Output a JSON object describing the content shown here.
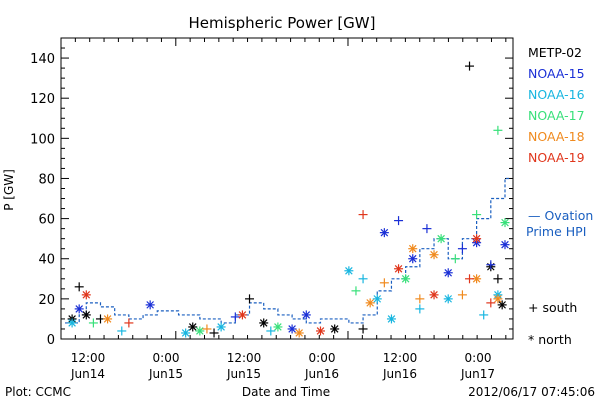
{
  "chart_data": {
    "type": "scatter",
    "title": "Hemispheric Power [GW]",
    "ylabel": "P [GW]",
    "xlabel": "Date and Time",
    "footer_left": "Plot: CCMC",
    "footer_right": "2012/06/17 07:45:06",
    "ylim": [
      0,
      150
    ],
    "yticks": [
      "0",
      "20",
      "40",
      "60",
      "80",
      "100",
      "120",
      "140"
    ],
    "xlim_hours": [
      -8,
      23.5
    ],
    "xticks": [
      {
        "time": "12:00",
        "day": "Jun14"
      },
      {
        "time": "0:00",
        "day": "Jun15"
      },
      {
        "time": "12:00",
        "day": "Jun15"
      },
      {
        "time": "0:00",
        "day": "Jun16"
      },
      {
        "time": "12:00",
        "day": "Jun16"
      },
      {
        "time": "0:00",
        "day": "Jun17"
      }
    ],
    "legend": {
      "placement": "right",
      "satellites": [
        {
          "name": "METP-02",
          "color": "#000000"
        },
        {
          "name": "NOAA-15",
          "color": "#1a2fd6"
        },
        {
          "name": "NOAA-16",
          "color": "#18b6e0"
        },
        {
          "name": "NOAA-17",
          "color": "#38e07a"
        },
        {
          "name": "NOAA-18",
          "color": "#f08a1e"
        },
        {
          "name": "NOAA-19",
          "color": "#e0361c"
        }
      ],
      "ovation_line1": "— Ovation",
      "ovation_line2": "Prime HPI",
      "ovation_color": "#1a5fc0",
      "south_label": "+ south",
      "north_label": "* north"
    },
    "series": [
      {
        "name": "Ovation Prime HPI",
        "kind": "step",
        "x": [
          -8,
          -7,
          -6.5,
          -5.5,
          -4.5,
          -3.5,
          -2.5,
          -1.5,
          0,
          1.5,
          3,
          4,
          5,
          6,
          7,
          8,
          9,
          10,
          11,
          12,
          13,
          14,
          15,
          16,
          17,
          18,
          19,
          20,
          21,
          22,
          23
        ],
        "y": [
          8,
          12,
          18,
          16,
          12,
          10,
          12,
          14,
          12,
          10,
          8,
          12,
          18,
          15,
          12,
          10,
          8,
          10,
          10,
          8,
          12,
          24,
          30,
          36,
          45,
          50,
          40,
          50,
          60,
          70,
          80
        ]
      },
      {
        "name": "METP-02",
        "points": [
          {
            "x": -7.5,
            "y": 10,
            "h": "N"
          },
          {
            "x": -7,
            "y": 26,
            "h": "S"
          },
          {
            "x": -6.5,
            "y": 12,
            "h": "N"
          },
          {
            "x": -5.5,
            "y": 10,
            "h": "S"
          },
          {
            "x": 1,
            "y": 6,
            "h": "N"
          },
          {
            "x": 2.5,
            "y": 3,
            "h": "S"
          },
          {
            "x": 5,
            "y": 20,
            "h": "S"
          },
          {
            "x": 6,
            "y": 8,
            "h": "N"
          },
          {
            "x": 11,
            "y": 5,
            "h": "N"
          },
          {
            "x": 13,
            "y": 5,
            "h": "S"
          },
          {
            "x": 20.5,
            "y": 136,
            "h": "S"
          },
          {
            "x": 22,
            "y": 36,
            "h": "N"
          },
          {
            "x": 22.5,
            "y": 30,
            "h": "S"
          },
          {
            "x": 22.8,
            "y": 17,
            "h": "N"
          }
        ]
      },
      {
        "name": "NOAA-15",
        "points": [
          {
            "x": -7,
            "y": 15,
            "h": "N"
          },
          {
            "x": -2,
            "y": 17,
            "h": "N"
          },
          {
            "x": 4,
            "y": 11,
            "h": "S"
          },
          {
            "x": 8,
            "y": 5,
            "h": "N"
          },
          {
            "x": 9,
            "y": 12,
            "h": "N"
          },
          {
            "x": 14.5,
            "y": 53,
            "h": "N"
          },
          {
            "x": 15.5,
            "y": 59,
            "h": "S"
          },
          {
            "x": 16.5,
            "y": 40,
            "h": "N"
          },
          {
            "x": 17.5,
            "y": 55,
            "h": "S"
          },
          {
            "x": 19,
            "y": 33,
            "h": "N"
          },
          {
            "x": 20,
            "y": 45,
            "h": "S"
          },
          {
            "x": 21,
            "y": 48,
            "h": "N"
          },
          {
            "x": 22,
            "y": 37,
            "h": "S"
          },
          {
            "x": 23,
            "y": 47,
            "h": "N"
          }
        ]
      },
      {
        "name": "NOAA-16",
        "points": [
          {
            "x": -7.5,
            "y": 8,
            "h": "N"
          },
          {
            "x": -4,
            "y": 4,
            "h": "S"
          },
          {
            "x": 0.5,
            "y": 3,
            "h": "N"
          },
          {
            "x": 3,
            "y": 6,
            "h": "N"
          },
          {
            "x": 6.5,
            "y": 4,
            "h": "S"
          },
          {
            "x": 12,
            "y": 34,
            "h": "N"
          },
          {
            "x": 13,
            "y": 30,
            "h": "S"
          },
          {
            "x": 14,
            "y": 20,
            "h": "N"
          },
          {
            "x": 15,
            "y": 10,
            "h": "N"
          },
          {
            "x": 17,
            "y": 15,
            "h": "S"
          },
          {
            "x": 19,
            "y": 20,
            "h": "N"
          },
          {
            "x": 21.5,
            "y": 12,
            "h": "S"
          },
          {
            "x": 22.5,
            "y": 22,
            "h": "N"
          }
        ]
      },
      {
        "name": "NOAA-17",
        "points": [
          {
            "x": -6,
            "y": 8,
            "h": "S"
          },
          {
            "x": 1.5,
            "y": 4,
            "h": "N"
          },
          {
            "x": 7,
            "y": 6,
            "h": "N"
          },
          {
            "x": 12.5,
            "y": 24,
            "h": "S"
          },
          {
            "x": 16,
            "y": 30,
            "h": "N"
          },
          {
            "x": 18.5,
            "y": 50,
            "h": "N"
          },
          {
            "x": 19.5,
            "y": 40,
            "h": "S"
          },
          {
            "x": 21,
            "y": 62,
            "h": "S"
          },
          {
            "x": 22.5,
            "y": 104,
            "h": "S"
          },
          {
            "x": 23,
            "y": 58,
            "h": "N"
          }
        ]
      },
      {
        "name": "NOAA-18",
        "points": [
          {
            "x": -5,
            "y": 10,
            "h": "N"
          },
          {
            "x": 2,
            "y": 5,
            "h": "S"
          },
          {
            "x": 8.5,
            "y": 3,
            "h": "N"
          },
          {
            "x": 13.5,
            "y": 18,
            "h": "N"
          },
          {
            "x": 14.5,
            "y": 28,
            "h": "S"
          },
          {
            "x": 16.5,
            "y": 45,
            "h": "N"
          },
          {
            "x": 17,
            "y": 20,
            "h": "S"
          },
          {
            "x": 18,
            "y": 42,
            "h": "N"
          },
          {
            "x": 20,
            "y": 22,
            "h": "S"
          },
          {
            "x": 21,
            "y": 30,
            "h": "N"
          },
          {
            "x": 22.5,
            "y": 20,
            "h": "N"
          }
        ]
      },
      {
        "name": "NOAA-19",
        "points": [
          {
            "x": -6.5,
            "y": 22,
            "h": "N"
          },
          {
            "x": -3.5,
            "y": 8,
            "h": "S"
          },
          {
            "x": 4.5,
            "y": 12,
            "h": "N"
          },
          {
            "x": 10,
            "y": 4,
            "h": "N"
          },
          {
            "x": 13,
            "y": 62,
            "h": "S"
          },
          {
            "x": 15.5,
            "y": 35,
            "h": "N"
          },
          {
            "x": 18,
            "y": 22,
            "h": "N"
          },
          {
            "x": 20.5,
            "y": 30,
            "h": "S"
          },
          {
            "x": 21,
            "y": 50,
            "h": "N"
          },
          {
            "x": 22,
            "y": 18,
            "h": "S"
          }
        ]
      }
    ]
  }
}
